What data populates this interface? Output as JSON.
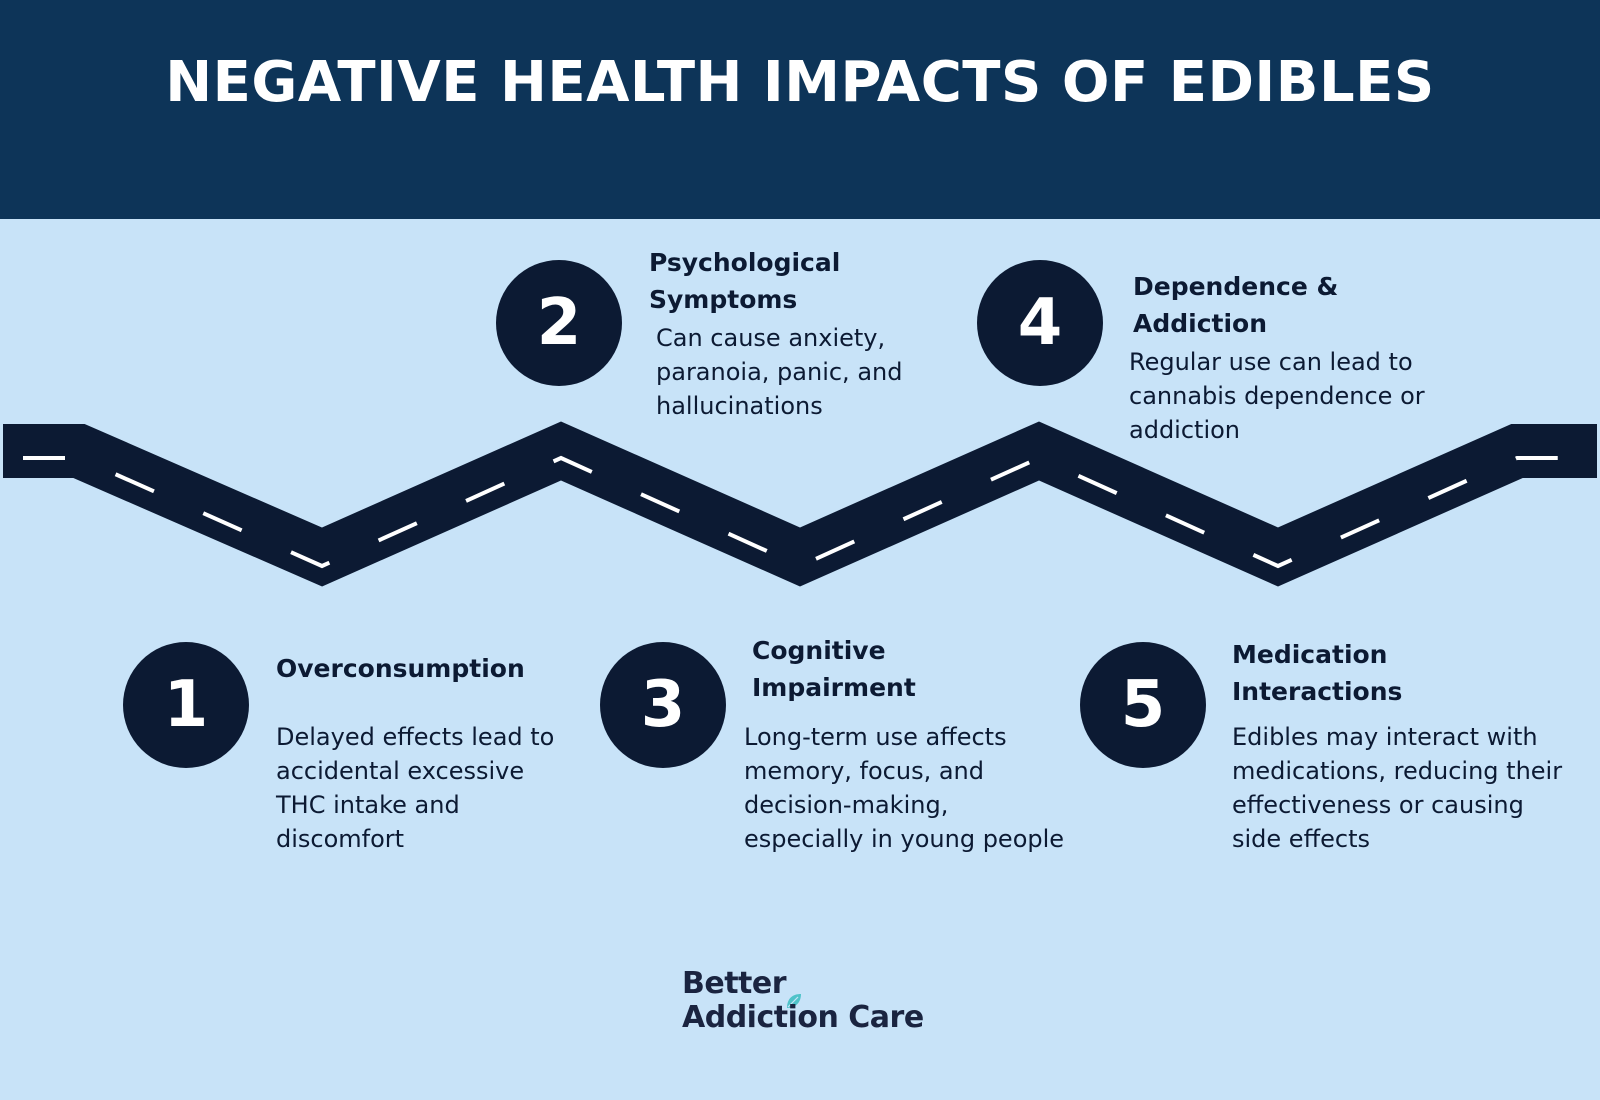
{
  "title": "NEGATIVE HEALTH IMPACTS OF EDIBLES",
  "steps": [
    {
      "number": "1",
      "heading": "Overconsumption",
      "description": "Delayed effects lead to accidental excessive THC intake and discomfort"
    },
    {
      "number": "2",
      "heading": "Psychological Symptoms",
      "description": "Can cause anxiety, paranoia, panic, and hallucinations"
    },
    {
      "number": "3",
      "heading": "Cognitive Impairment",
      "description": "Long-term use affects memory, focus, and decision-making, especially in young people"
    },
    {
      "number": "4",
      "heading": "Dependence & Addiction",
      "description": "Regular use can lead to cannabis dependence or addiction"
    },
    {
      "number": "5",
      "heading": "Medication Interactions",
      "description": "Edibles may interact with medications, reducing their effectiveness or causing side effects"
    }
  ],
  "logo": {
    "line1": "Better",
    "line2": "Addiction Care"
  },
  "colors": {
    "header": "#0d3458",
    "background": "#c8e3f8",
    "circle": "#0c1a33",
    "road": "#0c1a33",
    "leaf": "#4fc3c9"
  }
}
